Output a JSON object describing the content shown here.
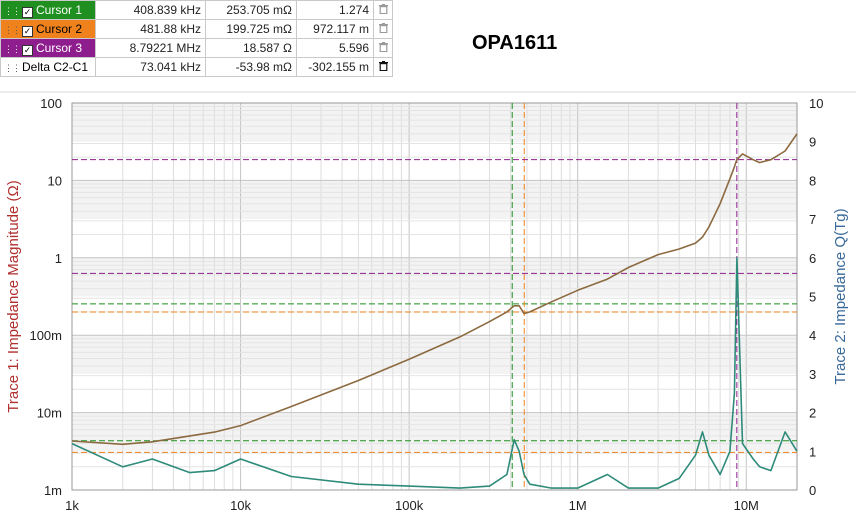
{
  "title": "OPA1611",
  "cursor_table": {
    "rows": [
      {
        "name": "Cursor 1",
        "checked": true,
        "color": "#1f8f1f",
        "text_color": "#ffffff",
        "values": [
          "408.839 kHz",
          "253.705 mΩ",
          "1.274"
        ],
        "icon": "trash-icon"
      },
      {
        "name": "Cursor 2",
        "checked": true,
        "color": "#f0821e",
        "text_color": "#000000",
        "values": [
          "481.88 kHz",
          "199.725 mΩ",
          "972.117 m"
        ],
        "icon": "trash-icon"
      },
      {
        "name": "Cursor 3",
        "checked": true,
        "color": "#8e1e8e",
        "text_color": "#ffffff",
        "values": [
          "8.79221 MHz",
          "18.587 Ω",
          "5.596"
        ],
        "icon": "trash-icon"
      },
      {
        "name": "Delta C2-C1",
        "checked": false,
        "color": "#ffffff",
        "text_color": "#000000",
        "values": [
          "73.041 kHz",
          "-53.98 mΩ",
          "-302.155 m"
        ],
        "icon": "trash-icon"
      }
    ]
  },
  "chart_data": {
    "type": "line",
    "xscale": "log",
    "xlim": [
      1000,
      20000000
    ],
    "x_ticks": [
      "1k",
      "10k",
      "100k",
      "1M",
      "10M"
    ],
    "y_left": {
      "label": "Trace 1: Impedance Magnitude (Ω)",
      "scale": "log",
      "lim": [
        0.001,
        100
      ],
      "ticks": [
        "1m",
        "10m",
        "100m",
        "1",
        "10",
        "100"
      ],
      "color": "#b03030"
    },
    "y_right": {
      "label": "Trace 2: Impedance Q(Tg)",
      "scale": "linear",
      "lim": [
        0,
        10
      ],
      "ticks": [
        "0",
        "1",
        "2",
        "3",
        "4",
        "5",
        "6",
        "7",
        "8",
        "9",
        "10"
      ],
      "color": "#3a6a99"
    },
    "grid": true,
    "series": [
      {
        "axis": "left",
        "color": "#8c6a40",
        "x": [
          1000,
          2000,
          3000,
          5000,
          7000,
          10000,
          20000,
          50000,
          100000,
          200000,
          300000,
          380000,
          420000,
          450000,
          480000,
          520000,
          700000,
          1000000,
          1500000,
          2000000,
          3000000,
          4000000,
          5000000,
          5500000,
          6000000,
          7000000,
          8000000,
          8500000,
          8800000,
          9500000,
          11000000,
          12000000,
          14000000,
          17000000,
          20000000
        ],
        "y": [
          0.0043,
          0.0039,
          0.0042,
          0.005,
          0.0056,
          0.0068,
          0.012,
          0.026,
          0.049,
          0.095,
          0.15,
          0.2,
          0.24,
          0.24,
          0.19,
          0.2,
          0.27,
          0.38,
          0.53,
          0.75,
          1.1,
          1.3,
          1.55,
          1.85,
          2.5,
          5,
          10.5,
          15,
          18.6,
          22,
          18.5,
          17,
          18.5,
          24,
          40
        ]
      },
      {
        "axis": "right",
        "color": "#2e8b7a",
        "x": [
          1000,
          2000,
          3000,
          5000,
          7000,
          10000,
          20000,
          50000,
          100000,
          200000,
          300000,
          380000,
          420000,
          450000,
          480000,
          520000,
          700000,
          1000000,
          1500000,
          2000000,
          3000000,
          4000000,
          5000000,
          5500000,
          6000000,
          7000000,
          8000000,
          8500000,
          8800000,
          9500000,
          11000000,
          12000000,
          14000000,
          17000000,
          20000000
        ],
        "y": [
          1.2,
          0.6,
          0.8,
          0.45,
          0.5,
          0.8,
          0.35,
          0.15,
          0.1,
          0.05,
          0.1,
          0.4,
          1.3,
          1.0,
          0.4,
          0.15,
          0.05,
          0.05,
          0.4,
          0.05,
          0.05,
          0.3,
          0.9,
          1.5,
          0.9,
          0.4,
          1.0,
          2.5,
          6.0,
          1.2,
          0.8,
          0.6,
          0.5,
          1.5,
          1.0
        ]
      }
    ],
    "cursors": [
      {
        "name": "Cursor 1",
        "color": "#1f8f1f",
        "x": 408839,
        "y_left": 0.253705,
        "y_right": 1.274
      },
      {
        "name": "Cursor 2",
        "color": "#f0821e",
        "x": 481880,
        "y_left": 0.199725,
        "y_right": 0.972117
      },
      {
        "name": "Cursor 3",
        "color": "#8e1e8e",
        "x": 8792210,
        "y_left": 18.587,
        "y_right": 5.596
      }
    ]
  }
}
